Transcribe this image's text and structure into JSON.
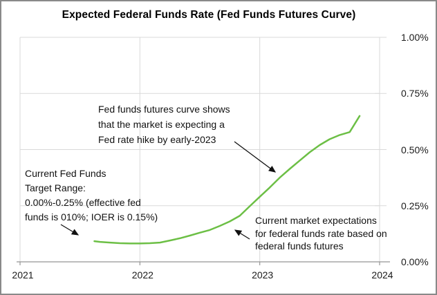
{
  "window": {
    "title": "Expected Federal Funds Rate (Fed Funds Futures Curve)"
  },
  "chart_data": {
    "type": "line",
    "title": "Expected Federal Funds Rate (Fed Funds Futures Curve)",
    "xlabel": "",
    "ylabel": "",
    "grid": true,
    "legend": "none",
    "x_axis": {
      "min": 2021,
      "max": 2024,
      "tick_values": [
        2021,
        2022,
        2023,
        2024
      ],
      "tick_labels": [
        "2021",
        "2022",
        "2023",
        "2024"
      ]
    },
    "y_axis": {
      "side": "right",
      "min": 0.0,
      "max": 1.0,
      "tick_values": [
        0.0,
        0.25,
        0.5,
        0.75,
        1.0
      ],
      "tick_labels": [
        "0.00%",
        "0.25%",
        "0.50%",
        "0.75%",
        "1.00%"
      ]
    },
    "series": [
      {
        "color": "#6cbf45",
        "points": [
          {
            "x": 2021.62,
            "y_pct": 0.092
          },
          {
            "x": 2021.667,
            "y_pct": 0.089
          },
          {
            "x": 2021.75,
            "y_pct": 0.086
          },
          {
            "x": 2021.833,
            "y_pct": 0.083
          },
          {
            "x": 2021.917,
            "y_pct": 0.082
          },
          {
            "x": 2022.0,
            "y_pct": 0.082
          },
          {
            "x": 2022.083,
            "y_pct": 0.083
          },
          {
            "x": 2022.167,
            "y_pct": 0.086
          },
          {
            "x": 2022.25,
            "y_pct": 0.095
          },
          {
            "x": 2022.333,
            "y_pct": 0.105
          },
          {
            "x": 2022.417,
            "y_pct": 0.117
          },
          {
            "x": 2022.5,
            "y_pct": 0.13
          },
          {
            "x": 2022.583,
            "y_pct": 0.142
          },
          {
            "x": 2022.667,
            "y_pct": 0.16
          },
          {
            "x": 2022.75,
            "y_pct": 0.18
          },
          {
            "x": 2022.833,
            "y_pct": 0.205
          },
          {
            "x": 2022.917,
            "y_pct": 0.248
          },
          {
            "x": 2023.0,
            "y_pct": 0.29
          },
          {
            "x": 2023.083,
            "y_pct": 0.331
          },
          {
            "x": 2023.167,
            "y_pct": 0.375
          },
          {
            "x": 2023.25,
            "y_pct": 0.414
          },
          {
            "x": 2023.333,
            "y_pct": 0.451
          },
          {
            "x": 2023.417,
            "y_pct": 0.488
          },
          {
            "x": 2023.5,
            "y_pct": 0.52
          },
          {
            "x": 2023.583,
            "y_pct": 0.546
          },
          {
            "x": 2023.667,
            "y_pct": 0.565
          },
          {
            "x": 2023.75,
            "y_pct": 0.578
          },
          {
            "x": 2023.833,
            "y_pct": 0.65
          }
        ]
      }
    ],
    "annotations": [
      {
        "id": "hike",
        "text": "Fed funds futures curve shows\nthat the market is expecting a\nFed rate hike by early-2023",
        "arrow": {
          "from": [
            337,
            203
          ],
          "to": [
            396,
            247
          ]
        }
      },
      {
        "id": "target",
        "text": "Current Fed Funds\nTarget Range:\n0.00%-0.25% (effective fed\nfunds is 010%; IOER is 0.15%)",
        "arrow": {
          "from": [
            86,
            323
          ],
          "to": [
            111,
            338
          ]
        }
      },
      {
        "id": "market",
        "text": "Current market  expectations\nfor federal funds rate based on\nfederal funds futures",
        "arrow": {
          "from": [
            359,
            344
          ],
          "to": [
            338,
            331
          ]
        }
      }
    ],
    "colors": {
      "line": "#6cbf45",
      "gridline": "#d9d9d9",
      "axis": "#959595",
      "text": "#1a1a1a",
      "frame_border": "#898989"
    }
  }
}
